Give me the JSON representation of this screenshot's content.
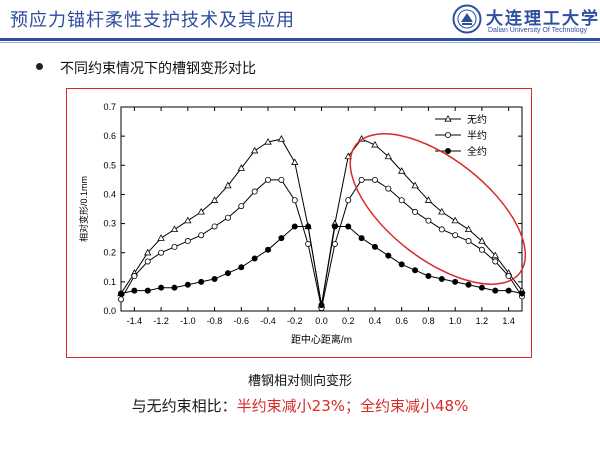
{
  "header": {
    "title": "预应力锚杆柔性支护技术及其应用",
    "logo_cn": "大连理工大学",
    "logo_en": "Dalian University Of Technology"
  },
  "bullet": {
    "text": "不同约束情况下的槽钢变形对比"
  },
  "caption": "槽钢相对侧向变形",
  "summary": {
    "lead": "与无约束相比：",
    "highlight": "半约束减小23%；全约束减小48%"
  },
  "colors": {
    "accent": "#2e4ea0",
    "highlight": "#d92a2a"
  },
  "chart_data": {
    "type": "line",
    "xlabel": "距中心距离/m",
    "ylabel": "相对变形/0.1mm",
    "xlim": [
      -1.5,
      1.5
    ],
    "ylim": [
      0.0,
      0.7
    ],
    "xticks": [
      -1.4,
      -1.2,
      -1.0,
      -0.8,
      -0.6,
      -0.4,
      -0.2,
      0.0,
      0.2,
      0.4,
      0.6,
      0.8,
      1.0,
      1.2,
      1.4
    ],
    "yticks": [
      0.0,
      0.1,
      0.2,
      0.3,
      0.4,
      0.5,
      0.6,
      0.7
    ],
    "legend_position": "top-right",
    "x": [
      -1.5,
      -1.4,
      -1.3,
      -1.2,
      -1.1,
      -1.0,
      -0.9,
      -0.8,
      -0.7,
      -0.6,
      -0.5,
      -0.4,
      -0.3,
      -0.2,
      -0.1,
      0.0,
      0.1,
      0.2,
      0.3,
      0.4,
      0.5,
      0.6,
      0.7,
      0.8,
      0.9,
      1.0,
      1.1,
      1.2,
      1.3,
      1.4,
      1.5
    ],
    "series": [
      {
        "name": "无约",
        "marker": "triangle-open",
        "values": [
          0.06,
          0.13,
          0.2,
          0.25,
          0.28,
          0.31,
          0.34,
          0.38,
          0.43,
          0.49,
          0.55,
          0.58,
          0.59,
          0.51,
          0.29,
          0.02,
          0.3,
          0.53,
          0.59,
          0.57,
          0.53,
          0.48,
          0.43,
          0.38,
          0.34,
          0.31,
          0.28,
          0.24,
          0.19,
          0.13,
          0.07
        ]
      },
      {
        "name": "半约",
        "marker": "circle-open",
        "values": [
          0.04,
          0.12,
          0.17,
          0.2,
          0.22,
          0.24,
          0.26,
          0.29,
          0.32,
          0.36,
          0.41,
          0.45,
          0.45,
          0.38,
          0.23,
          0.01,
          0.23,
          0.38,
          0.45,
          0.45,
          0.42,
          0.38,
          0.34,
          0.31,
          0.28,
          0.26,
          0.24,
          0.21,
          0.17,
          0.12,
          0.05
        ]
      },
      {
        "name": "全约",
        "marker": "circle-filled",
        "values": [
          0.06,
          0.07,
          0.07,
          0.08,
          0.08,
          0.09,
          0.1,
          0.11,
          0.13,
          0.15,
          0.18,
          0.21,
          0.25,
          0.29,
          0.29,
          0.02,
          0.29,
          0.29,
          0.25,
          0.22,
          0.19,
          0.16,
          0.14,
          0.12,
          0.11,
          0.1,
          0.09,
          0.08,
          0.07,
          0.07,
          0.06
        ]
      }
    ],
    "annotation": {
      "shape": "ellipse",
      "color": "#d92a2a",
      "encloses": "right half peaks (x ≈ 0.2 to 1.5)"
    }
  }
}
